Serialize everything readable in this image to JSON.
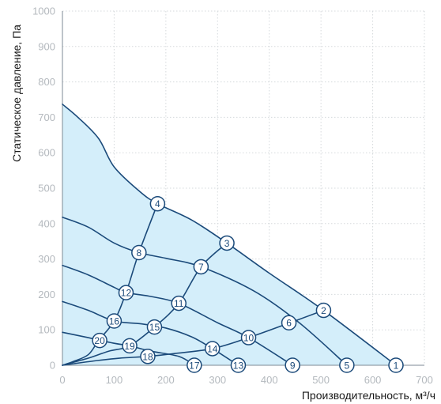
{
  "chart_data": {
    "type": "line",
    "xlabel": "Производительность, м³/ч",
    "ylabel": "Статическое давление, Па",
    "xlim": [
      0,
      700
    ],
    "ylim": [
      0,
      1000
    ],
    "xticks": [
      "0",
      "100",
      "200",
      "300",
      "400",
      "500",
      "600",
      "700"
    ],
    "yticks": [
      "0",
      "100",
      "200",
      "300",
      "400",
      "500",
      "600",
      "700",
      "800",
      "900",
      "1000"
    ],
    "grid": true,
    "area_fill_color": "#d4eefa",
    "line_color": "#1b4a7a",
    "tick_color": "#b4b9be",
    "fan_curves": [
      {
        "points": [
          [
            0,
            737
          ],
          [
            30,
            700
          ],
          [
            70,
            640
          ],
          [
            100,
            560
          ],
          [
            150,
            490
          ],
          [
            184,
            456
          ],
          [
            250,
            410
          ],
          [
            318,
            345
          ],
          [
            400,
            260
          ],
          [
            505,
            155
          ],
          [
            645,
            0
          ]
        ]
      },
      {
        "points": [
          [
            0,
            418
          ],
          [
            50,
            390
          ],
          [
            100,
            345
          ],
          [
            148,
            318
          ],
          [
            200,
            302
          ],
          [
            268,
            278
          ],
          [
            370,
            210
          ],
          [
            458,
            120
          ],
          [
            550,
            0
          ]
        ]
      },
      {
        "points": [
          [
            0,
            282
          ],
          [
            50,
            255
          ],
          [
            100,
            220
          ],
          [
            123,
            205
          ],
          [
            168,
            195
          ],
          [
            225,
            175
          ],
          [
            300,
            120
          ],
          [
            360,
            78
          ],
          [
            445,
            0
          ]
        ]
      },
      {
        "points": [
          [
            0,
            180
          ],
          [
            50,
            155
          ],
          [
            100,
            125
          ],
          [
            152,
            117
          ],
          [
            200,
            105
          ],
          [
            250,
            80
          ],
          [
            290,
            47
          ],
          [
            340,
            0
          ]
        ]
      },
      {
        "points": [
          [
            0,
            93
          ],
          [
            50,
            78
          ],
          [
            100,
            62
          ],
          [
            130,
            55
          ],
          [
            170,
            40
          ],
          [
            225,
            25
          ],
          [
            255,
            0
          ]
        ]
      }
    ],
    "system_curves": [
      {
        "points": [
          [
            0,
            0
          ],
          [
            20,
            10
          ],
          [
            50,
            30
          ],
          [
            70,
            70
          ],
          [
            100,
            125
          ],
          [
            123,
            205
          ],
          [
            148,
            318
          ],
          [
            184,
            456
          ]
        ]
      },
      {
        "points": [
          [
            0,
            0
          ],
          [
            50,
            20
          ],
          [
            90,
            40
          ],
          [
            130,
            55
          ],
          [
            178,
            108
          ],
          [
            225,
            175
          ],
          [
            268,
            278
          ],
          [
            318,
            345
          ]
        ]
      },
      {
        "points": [
          [
            0,
            0
          ],
          [
            60,
            12
          ],
          [
            110,
            20
          ],
          [
            165,
            25
          ],
          [
            210,
            32
          ],
          [
            290,
            47
          ],
          [
            360,
            78
          ],
          [
            440,
            120
          ],
          [
            505,
            155
          ]
        ]
      }
    ],
    "markers": [
      {
        "label": "1",
        "x": 645,
        "y": 0
      },
      {
        "label": "2",
        "x": 505,
        "y": 155
      },
      {
        "label": "3",
        "x": 318,
        "y": 345
      },
      {
        "label": "4",
        "x": 184,
        "y": 456
      },
      {
        "label": "5",
        "x": 550,
        "y": 0
      },
      {
        "label": "6",
        "x": 438,
        "y": 120
      },
      {
        "label": "7",
        "x": 268,
        "y": 278
      },
      {
        "label": "8",
        "x": 148,
        "y": 318
      },
      {
        "label": "9",
        "x": 445,
        "y": 0
      },
      {
        "label": "10",
        "x": 360,
        "y": 78
      },
      {
        "label": "11",
        "x": 225,
        "y": 175
      },
      {
        "label": "12",
        "x": 123,
        "y": 205
      },
      {
        "label": "13",
        "x": 340,
        "y": 0
      },
      {
        "label": "14",
        "x": 290,
        "y": 47
      },
      {
        "label": "15",
        "x": 178,
        "y": 108
      },
      {
        "label": "16",
        "x": 100,
        "y": 125
      },
      {
        "label": "17",
        "x": 255,
        "y": 0
      },
      {
        "label": "18",
        "x": 165,
        "y": 25
      },
      {
        "label": "19",
        "x": 130,
        "y": 55
      },
      {
        "label": "20",
        "x": 72,
        "y": 70
      }
    ]
  }
}
